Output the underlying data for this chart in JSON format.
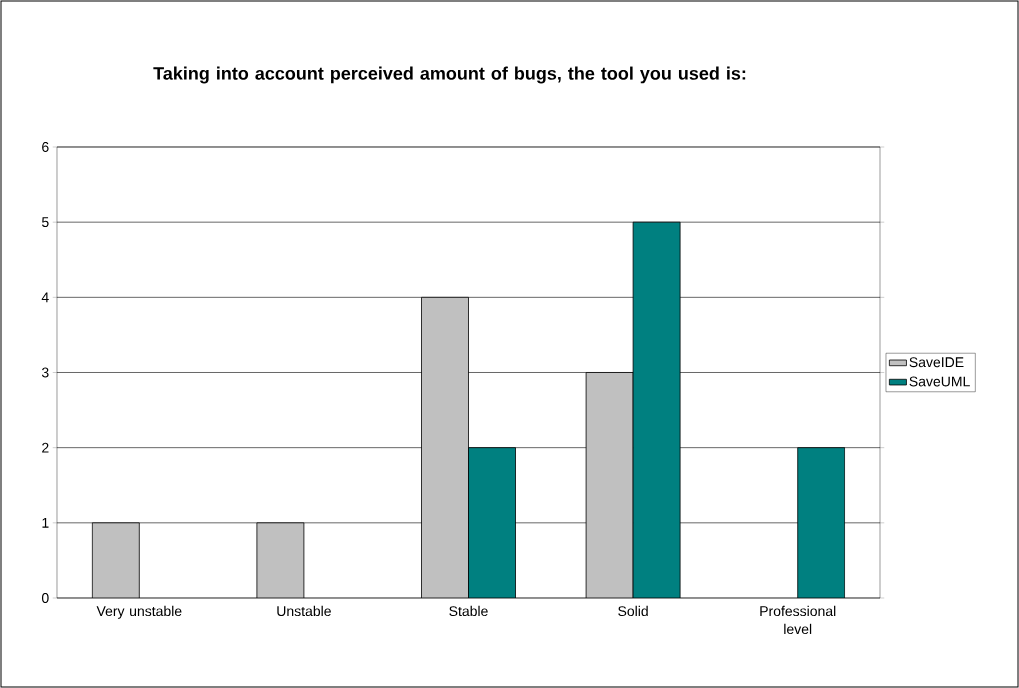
{
  "chart_data": {
    "type": "bar",
    "title": "Taking into account perceived amount of bugs, the tool you used is:",
    "categories": [
      "Very unstable",
      "Unstable",
      "Stable",
      "Solid",
      "Professional level"
    ],
    "series": [
      {
        "name": "SaveIDE",
        "color": "#c0c0c0",
        "values": [
          1,
          1,
          4,
          3,
          0
        ]
      },
      {
        "name": "SaveUML",
        "color": "#008080",
        "values": [
          0,
          0,
          2,
          5,
          2
        ]
      }
    ],
    "ylim": [
      0,
      6
    ],
    "yticks": [
      0,
      1,
      2,
      3,
      4,
      5,
      6
    ],
    "grid": "y",
    "legend": "right"
  }
}
